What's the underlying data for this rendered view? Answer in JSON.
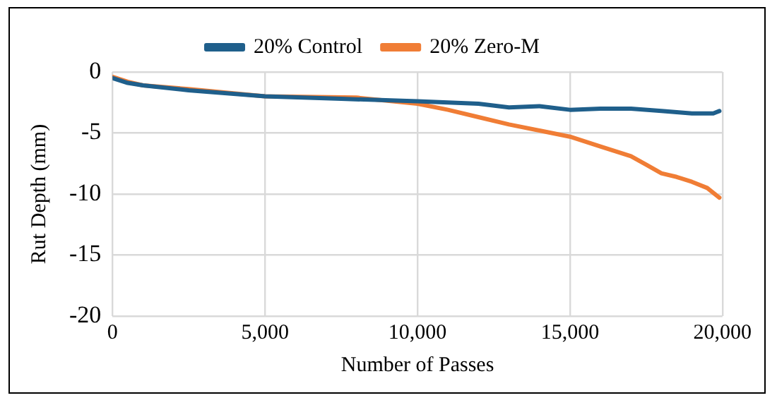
{
  "chart_data": {
    "type": "line",
    "xlabel": "Number of Passes",
    "ylabel": "Rut Depth (mm)",
    "xlim": [
      0,
      20000
    ],
    "xticks": [
      {
        "value": 0,
        "label": "0"
      },
      {
        "value": 5000,
        "label": "5,000"
      },
      {
        "value": 10000,
        "label": "10,000"
      },
      {
        "value": 15000,
        "label": "15,000"
      },
      {
        "value": 20000,
        "label": "20,000"
      }
    ],
    "ylim": [
      -20,
      0
    ],
    "yticks": [
      -20,
      -15,
      -10,
      -5,
      0
    ],
    "grid": true,
    "legend": "top",
    "marker": "none",
    "line_style": "solid",
    "series": [
      {
        "name": "20% Control",
        "color": "#1f5f8b",
        "x": [
          0,
          500,
          1000,
          2500,
          5000,
          7500,
          10000,
          11000,
          12000,
          13000,
          14000,
          15000,
          16000,
          17000,
          18000,
          19000,
          19700,
          19900
        ],
        "values": [
          -0.5,
          -0.9,
          -1.1,
          -1.5,
          -2.0,
          -2.2,
          -2.4,
          -2.5,
          -2.6,
          -2.9,
          -2.8,
          -3.1,
          -3.0,
          -3.0,
          -3.2,
          -3.4,
          -3.4,
          -3.2
        ]
      },
      {
        "name": "20% Zero-M",
        "color": "#f07d35",
        "x": [
          0,
          500,
          1000,
          2500,
          5000,
          8000,
          10000,
          11000,
          12000,
          13000,
          14000,
          15000,
          16000,
          17000,
          17500,
          18000,
          18500,
          19000,
          19500,
          19900
        ],
        "values": [
          -0.4,
          -0.8,
          -1.1,
          -1.4,
          -2.0,
          -2.1,
          -2.6,
          -3.1,
          -3.7,
          -4.3,
          -4.8,
          -5.3,
          -6.1,
          -6.9,
          -7.6,
          -8.3,
          -8.6,
          -9.0,
          -9.5,
          -10.3
        ]
      }
    ]
  }
}
